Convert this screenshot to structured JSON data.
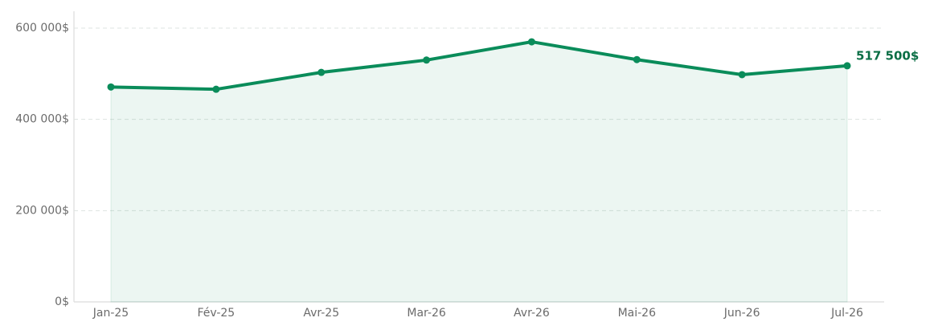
{
  "chart_data": {
    "type": "line",
    "categories": [
      "Jan-25",
      "Fév-25",
      "Avr-25",
      "Mar-26",
      "Avr-26",
      "Mai-26",
      "Jun-26",
      "Jul-26"
    ],
    "series": [
      {
        "color": "#0a8c5a",
        "values": [
          471000,
          466000,
          503000,
          530000,
          570000,
          531000,
          498000,
          517500
        ],
        "value_labels": [
          null,
          null,
          null,
          null,
          null,
          null,
          null,
          "517 500$"
        ]
      }
    ],
    "ylim": [
      0,
      637000
    ],
    "yticks": [
      {
        "value": 0,
        "label": "0$"
      },
      {
        "value": 200000,
        "label": "200 000$"
      },
      {
        "value": 400000,
        "label": "400 000$"
      },
      {
        "value": 600000,
        "label": "600 000$"
      }
    ],
    "grid": true,
    "area": true
  }
}
